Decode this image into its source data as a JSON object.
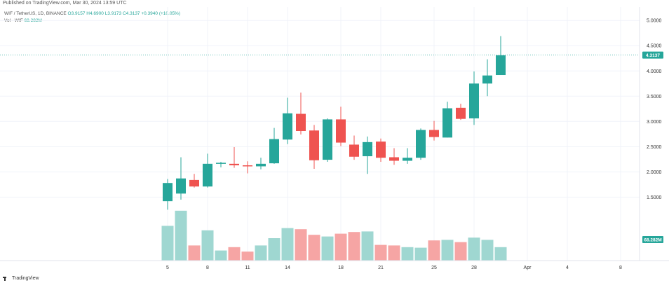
{
  "header": {
    "published": "Published on TradingView.com, Mar 30, 2024 13:59 UTC",
    "symbol": "WIF / TetherUS, 1D, BINANCE",
    "ohlc": "O3.9157  H4.6900  L3.9173  C4.3137  +0.3940 (+10.05%)",
    "volume_label": "Vol · WIF",
    "volume_value": "68.282M"
  },
  "brand": {
    "name": "TradingView"
  },
  "colors": {
    "up": "#26a69a",
    "down": "#ef5350",
    "vol_up": "#9fd7d1",
    "vol_down": "#f6a5a4",
    "badge": "#26a69a"
  },
  "chart_data": {
    "type": "candlestick",
    "x_ticks": [
      {
        "label": "5",
        "index": 0
      },
      {
        "label": "8",
        "index": 3
      },
      {
        "label": "11",
        "index": 6
      },
      {
        "label": "14",
        "index": 9
      },
      {
        "label": "18",
        "index": 13
      },
      {
        "label": "21",
        "index": 16
      },
      {
        "label": "25",
        "index": 20
      },
      {
        "label": "28",
        "index": 23
      },
      {
        "label": "Apr",
        "index": 27
      },
      {
        "label": "4",
        "index": 30
      },
      {
        "label": "8",
        "index": 34
      }
    ],
    "y_ticks": [
      "5.0000",
      "4.5000",
      "4.0000",
      "3.5000",
      "3.0000",
      "2.5000",
      "2.0000",
      "1.5000"
    ],
    "y_tick_values": [
      5.0,
      4.5,
      4.0,
      3.5,
      3.0,
      2.5,
      2.0,
      1.5
    ],
    "ylim": [
      1.2,
      5.1
    ],
    "volume_max": 1.0,
    "last_price": "4.3137",
    "last_price_value": 4.3137,
    "last_volume": "68.282M",
    "candles": [
      {
        "o": 1.42,
        "h": 1.86,
        "l": 1.25,
        "c": 1.78,
        "v": 0.62
      },
      {
        "o": 1.57,
        "h": 2.29,
        "l": 1.45,
        "c": 1.87,
        "v": 0.89
      },
      {
        "o": 1.84,
        "h": 1.96,
        "l": 1.69,
        "c": 1.71,
        "v": 0.27
      },
      {
        "o": 1.71,
        "h": 2.36,
        "l": 1.69,
        "c": 2.16,
        "v": 0.54
      },
      {
        "o": 2.16,
        "h": 2.2,
        "l": 2.09,
        "c": 2.18,
        "v": 0.18
      },
      {
        "o": 2.16,
        "h": 2.49,
        "l": 2.08,
        "c": 2.13,
        "v": 0.24
      },
      {
        "o": 2.13,
        "h": 2.21,
        "l": 1.97,
        "c": 2.11,
        "v": 0.16
      },
      {
        "o": 2.11,
        "h": 2.28,
        "l": 2.05,
        "c": 2.16,
        "v": 0.27
      },
      {
        "o": 2.17,
        "h": 2.87,
        "l": 2.16,
        "c": 2.65,
        "v": 0.4
      },
      {
        "o": 2.64,
        "h": 3.47,
        "l": 2.55,
        "c": 3.16,
        "v": 0.58
      },
      {
        "o": 3.15,
        "h": 3.57,
        "l": 2.74,
        "c": 2.81,
        "v": 0.56
      },
      {
        "o": 2.82,
        "h": 2.93,
        "l": 2.06,
        "c": 2.23,
        "v": 0.46
      },
      {
        "o": 2.24,
        "h": 3.06,
        "l": 2.2,
        "c": 3.04,
        "v": 0.43
      },
      {
        "o": 3.04,
        "h": 3.29,
        "l": 2.51,
        "c": 2.58,
        "v": 0.48
      },
      {
        "o": 2.54,
        "h": 2.72,
        "l": 2.24,
        "c": 2.3,
        "v": 0.51
      },
      {
        "o": 2.31,
        "h": 2.7,
        "l": 1.96,
        "c": 2.59,
        "v": 0.52
      },
      {
        "o": 2.6,
        "h": 2.66,
        "l": 2.2,
        "c": 2.28,
        "v": 0.28
      },
      {
        "o": 2.29,
        "h": 2.47,
        "l": 2.14,
        "c": 2.22,
        "v": 0.27
      },
      {
        "o": 2.22,
        "h": 2.47,
        "l": 2.16,
        "c": 2.28,
        "v": 0.24
      },
      {
        "o": 2.28,
        "h": 2.86,
        "l": 2.24,
        "c": 2.83,
        "v": 0.23
      },
      {
        "o": 2.83,
        "h": 3.01,
        "l": 2.62,
        "c": 2.69,
        "v": 0.36
      },
      {
        "o": 2.68,
        "h": 3.39,
        "l": 2.68,
        "c": 3.26,
        "v": 0.37
      },
      {
        "o": 3.27,
        "h": 3.35,
        "l": 3.03,
        "c": 3.05,
        "v": 0.33
      },
      {
        "o": 3.06,
        "h": 3.99,
        "l": 2.93,
        "c": 3.75,
        "v": 0.41
      },
      {
        "o": 3.75,
        "h": 4.23,
        "l": 3.5,
        "c": 3.91,
        "v": 0.37
      },
      {
        "o": 3.92,
        "h": 4.69,
        "l": 3.92,
        "c": 4.31,
        "v": 0.24
      }
    ]
  }
}
